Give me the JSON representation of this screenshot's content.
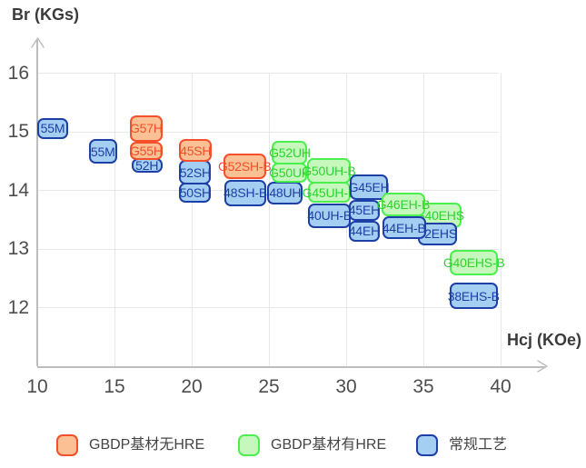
{
  "colors": {
    "orange": {
      "fill": "#FBC093",
      "border": "#F4502C",
      "text": "#F04F2A"
    },
    "green": {
      "fill": "#C6F8BE",
      "border": "#4CF04C",
      "text": "#2ED32E"
    },
    "blue": {
      "fill": "#A5CEF3",
      "border": "#1D40A6",
      "text": "#1D40A6"
    }
  },
  "legend": [
    {
      "key": "gbdp-no-hre",
      "label": "GBDP基材无HRE",
      "color": "orange"
    },
    {
      "key": "gbdp-hre",
      "label": "GBDP基材有HRE",
      "color": "green"
    },
    {
      "key": "conventional",
      "label": "常规工艺",
      "color": "blue"
    }
  ],
  "chart_data": {
    "type": "range-box-scatter",
    "title": "",
    "xlabel": "Hcj (KOe)",
    "ylabel": "Br (KGs)",
    "xlim": [
      10,
      43
    ],
    "ylim": [
      11,
      16.6
    ],
    "x_ticks": [
      10,
      15,
      20,
      25,
      30,
      35,
      40
    ],
    "y_ticks": [
      12,
      13,
      14,
      15,
      16
    ],
    "grid": true,
    "legend_position": "bottom",
    "series": [
      {
        "name": "GBDP基材无HRE",
        "color": "orange",
        "boxes": [
          {
            "label": "G57H",
            "hcj": [
              16.0,
              18.1
            ],
            "br": [
              14.82,
              15.28
            ],
            "z": 3
          },
          {
            "label": "G55H",
            "hcj": [
              16.0,
              18.1
            ],
            "br": [
              14.51,
              14.82
            ],
            "z": 3
          },
          {
            "label": "45SH",
            "hcj": [
              19.2,
              21.3
            ],
            "br": [
              14.48,
              14.87
            ],
            "z": 3
          },
          {
            "label": "G52SH-B",
            "hcj": [
              22.05,
              24.8
            ],
            "br": [
              14.19,
              14.63
            ],
            "z": 3
          }
        ]
      },
      {
        "name": "GBDP基材有HRE",
        "color": "green",
        "boxes": [
          {
            "label": "G52UH",
            "hcj": [
              25.2,
              27.5
            ],
            "br": [
              14.44,
              14.84
            ],
            "z": 3
          },
          {
            "label": "G50UH",
            "hcj": [
              25.2,
              27.5
            ],
            "br": [
              14.12,
              14.47
            ],
            "z": 3
          },
          {
            "label": "G50UH-B",
            "hcj": [
              27.45,
              30.3
            ],
            "br": [
              14.11,
              14.55
            ],
            "z": 3
          },
          {
            "label": "G45UH-B",
            "hcj": [
              27.5,
              30.3
            ],
            "br": [
              13.78,
              14.14
            ],
            "z": 3
          },
          {
            "label": "G46EH-B",
            "hcj": [
              32.3,
              35.1
            ],
            "br": [
              13.55,
              13.96
            ],
            "z": 5
          },
          {
            "label": "G40EHS",
            "hcj": [
              34.6,
              37.5
            ],
            "br": [
              13.36,
              13.78
            ],
            "z": 2
          },
          {
            "label": "G40EHS-B",
            "hcj": [
              36.7,
              39.85
            ],
            "br": [
              12.55,
              12.98
            ],
            "z": 2
          }
        ]
      },
      {
        "name": "常规工艺",
        "color": "blue",
        "boxes": [
          {
            "label": "55M",
            "hcj": [
              10.0,
              12.0
            ],
            "br": [
              14.87,
              15.23
            ],
            "z": 2
          },
          {
            "label": "55M",
            "hcj": [
              13.35,
              15.15
            ],
            "br": [
              14.45,
              14.87
            ],
            "z": 2
          },
          {
            "label": "52H",
            "hcj": [
              16.1,
              18.1
            ],
            "br": [
              14.29,
              14.54
            ],
            "z": 2
          },
          {
            "label": "52SH",
            "hcj": [
              19.2,
              21.25
            ],
            "br": [
              14.09,
              14.51
            ],
            "z": 2
          },
          {
            "label": "50SH",
            "hcj": [
              19.2,
              21.25
            ],
            "br": [
              13.78,
              14.13
            ],
            "z": 1
          },
          {
            "label": "48SH-B",
            "hcj": [
              22.1,
              24.85
            ],
            "br": [
              13.73,
              14.17
            ],
            "z": 2
          },
          {
            "label": "48UH",
            "hcj": [
              24.9,
              27.2
            ],
            "br": [
              13.76,
              14.15
            ],
            "z": 2
          },
          {
            "label": "40UH-B",
            "hcj": [
              27.55,
              30.3
            ],
            "br": [
              13.36,
              13.77
            ],
            "z": 2
          },
          {
            "label": "G45EH",
            "hcj": [
              30.25,
              32.7
            ],
            "br": [
              13.84,
              14.27
            ],
            "z": 4
          },
          {
            "label": "45EH",
            "hcj": [
              30.2,
              32.15
            ],
            "br": [
              13.47,
              13.84
            ],
            "z": 4
          },
          {
            "label": "44EH",
            "hcj": [
              30.2,
              32.15
            ],
            "br": [
              13.12,
              13.48
            ],
            "z": 4
          },
          {
            "label": "44EH-B",
            "hcj": [
              32.35,
              35.15
            ],
            "br": [
              13.16,
              13.56
            ],
            "z": 5
          },
          {
            "label": "42EHS",
            "hcj": [
              34.65,
              37.15
            ],
            "br": [
              13.06,
              13.45
            ],
            "z": 2
          },
          {
            "label": "38EHS-B",
            "hcj": [
              36.7,
              39.8
            ],
            "br": [
              11.97,
              12.42
            ],
            "z": 2
          }
        ]
      }
    ]
  }
}
